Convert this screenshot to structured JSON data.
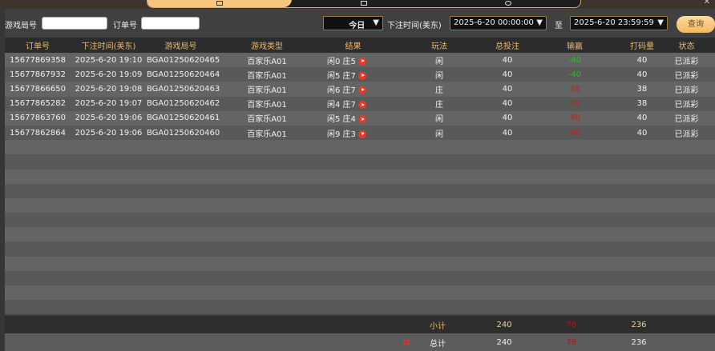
{
  "filter": {
    "round_label": "游戏局号",
    "round_value": "",
    "order_label": "订单号",
    "order_value": "",
    "range_select": "今日",
    "time_label": "下注时间(美东)",
    "start": "2025-6-20 00:00:00",
    "to_label": "至",
    "end": "2025-6-20 23:59:59",
    "query_button": "查询"
  },
  "columns": [
    "订单号",
    "下注时间(美东)",
    "游戏局号",
    "游戏类型",
    "结果",
    "玩法",
    "总投注",
    "输赢",
    "打码量",
    "状态"
  ],
  "rows": [
    [
      "15677869358",
      "2025-6-20 19:10",
      "BGA01250620465",
      "百家乐A01",
      "闲0 庄5",
      "闲",
      "40",
      "-40",
      "40",
      "已派彩"
    ],
    [
      "15677867932",
      "2025-6-20 19:09",
      "BGA01250620464",
      "百家乐A01",
      "闲5 庄7",
      "闲",
      "40",
      "-40",
      "40",
      "已派彩"
    ],
    [
      "15677866650",
      "2025-6-20 19:08",
      "BGA01250620463",
      "百家乐A01",
      "闲6 庄7",
      "庄",
      "40",
      "38",
      "38",
      "已派彩"
    ],
    [
      "15677865282",
      "2025-6-20 19:07",
      "BGA01250620462",
      "百家乐A01",
      "闲4 庄7",
      "庄",
      "40",
      "38",
      "38",
      "已派彩"
    ],
    [
      "15677863760",
      "2025-6-20 19:06",
      "BGA01250620461",
      "百家乐A01",
      "闲5 庄4",
      "闲",
      "40",
      "40",
      "40",
      "已派彩"
    ],
    [
      "15677862864",
      "2025-6-20 19:06",
      "BGA01250620460",
      "百家乐A01",
      "闲9 庄3",
      "闲",
      "40",
      "40",
      "40",
      "已派彩"
    ]
  ],
  "subtotal": {
    "label": "小计",
    "bet": "240",
    "win": "76",
    "turnover": "236"
  },
  "total": {
    "label": "总计",
    "bet": "240",
    "win": "76",
    "turnover": "236"
  },
  "colors": {
    "win_positive": "#c0201c",
    "win_negative": "#22c022",
    "accent": "#f7c67e"
  }
}
